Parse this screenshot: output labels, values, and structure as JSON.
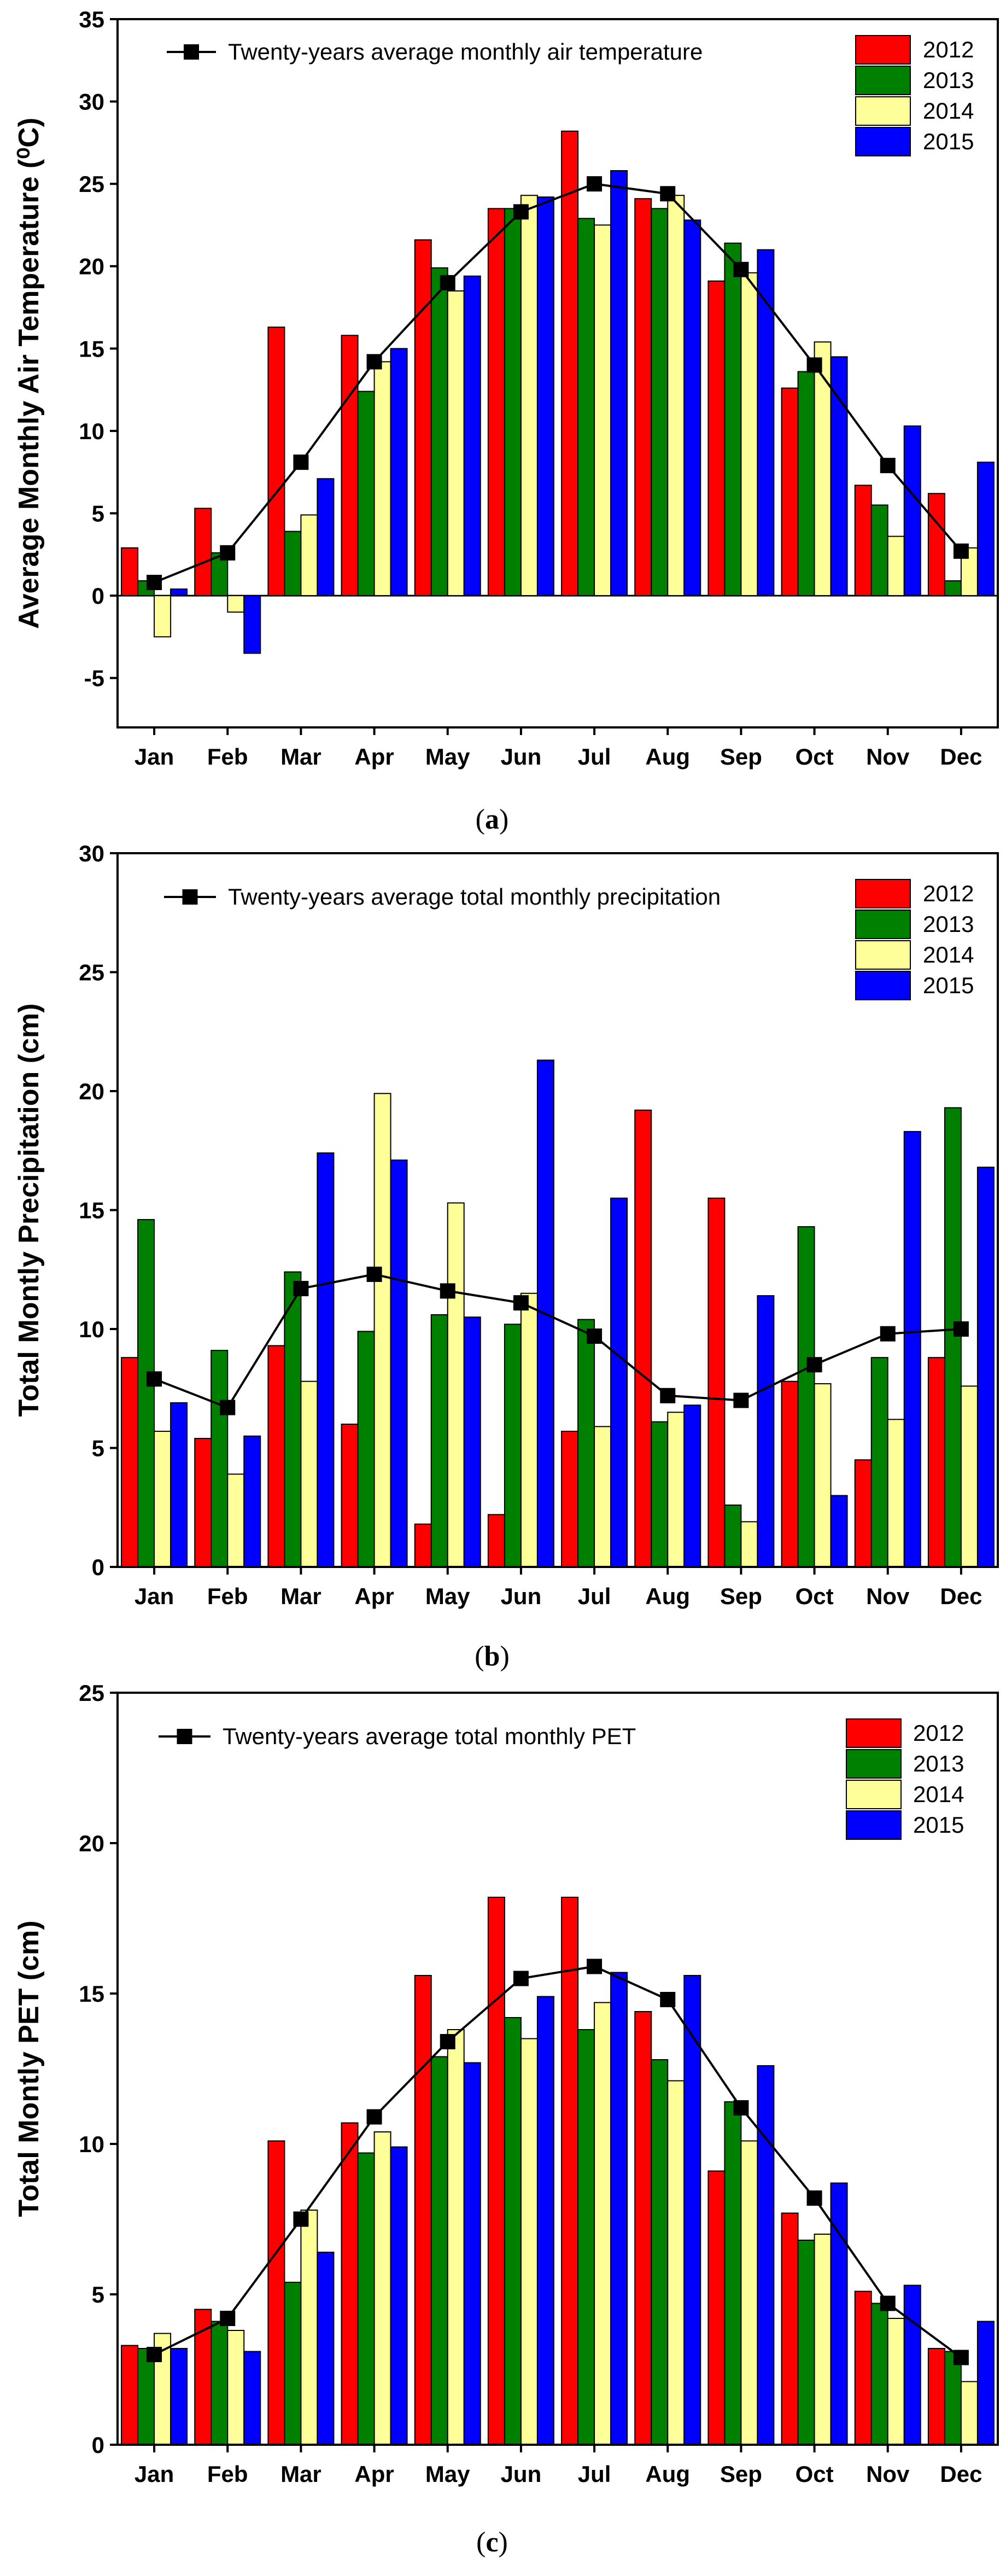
{
  "figure_colors": {
    "2012": "#ff0000",
    "2013": "#008000",
    "2014": "#ffff99",
    "2015": "#0000ff",
    "average_line": "#000000"
  },
  "chart_data": [
    {
      "type": "bar",
      "panel": "a",
      "caption": "(a)",
      "ylabel": "Average Monthly Air Temperature (⁰C)",
      "ylim": [
        -8,
        35
      ],
      "yticks": [
        -5,
        0,
        5,
        10,
        15,
        20,
        25,
        30,
        35
      ],
      "categories": [
        "Jan",
        "Feb",
        "Mar",
        "Apr",
        "May",
        "Jun",
        "Jul",
        "Aug",
        "Sep",
        "Oct",
        "Nov",
        "Dec"
      ],
      "series": [
        {
          "name": "2012",
          "values": [
            2.9,
            5.3,
            16.3,
            15.8,
            21.6,
            23.5,
            28.2,
            24.1,
            19.1,
            12.6,
            6.7,
            6.2
          ]
        },
        {
          "name": "2013",
          "values": [
            0.9,
            2.6,
            3.9,
            12.4,
            19.9,
            23.5,
            22.9,
            23.5,
            21.4,
            13.6,
            5.5,
            0.9
          ]
        },
        {
          "name": "2014",
          "values": [
            -2.5,
            -1.0,
            4.9,
            14.2,
            18.5,
            24.3,
            22.5,
            24.3,
            19.6,
            15.4,
            3.6,
            2.9
          ]
        },
        {
          "name": "2015",
          "values": [
            0.4,
            -3.5,
            7.1,
            15.0,
            19.4,
            24.2,
            25.8,
            22.8,
            21.0,
            14.5,
            10.3,
            8.1
          ]
        }
      ],
      "average": {
        "name": "Twenty-years average monthly air temperature",
        "values": [
          0.8,
          2.6,
          8.1,
          14.2,
          19.0,
          23.3,
          25.0,
          24.4,
          19.8,
          14.0,
          7.9,
          2.7
        ]
      }
    },
    {
      "type": "bar",
      "panel": "b",
      "caption": "(b)",
      "ylabel": "Total Montly Precipitation (cm)",
      "ylim": [
        0,
        30
      ],
      "yticks": [
        0,
        5,
        10,
        15,
        20,
        25,
        30
      ],
      "categories": [
        "Jan",
        "Feb",
        "Mar",
        "Apr",
        "May",
        "Jun",
        "Jul",
        "Aug",
        "Sep",
        "Oct",
        "Nov",
        "Dec"
      ],
      "series": [
        {
          "name": "2012",
          "values": [
            8.8,
            5.4,
            9.3,
            6.0,
            1.8,
            2.2,
            5.7,
            19.2,
            15.5,
            7.8,
            4.5,
            8.8
          ]
        },
        {
          "name": "2013",
          "values": [
            14.6,
            9.1,
            12.4,
            9.9,
            10.6,
            10.2,
            10.4,
            6.1,
            2.6,
            14.3,
            8.8,
            19.3
          ]
        },
        {
          "name": "2014",
          "values": [
            5.7,
            3.9,
            7.8,
            19.9,
            15.3,
            11.5,
            5.9,
            6.5,
            1.9,
            7.7,
            6.2,
            7.6
          ]
        },
        {
          "name": "2015",
          "values": [
            6.9,
            5.5,
            17.4,
            17.1,
            10.5,
            21.3,
            15.5,
            6.8,
            11.4,
            3.0,
            18.3,
            16.8
          ]
        }
      ],
      "average": {
        "name": "Twenty-years average total monthly precipitation",
        "values": [
          7.9,
          6.7,
          11.7,
          12.3,
          11.6,
          11.1,
          9.7,
          7.2,
          7.0,
          8.5,
          9.8,
          10.0
        ]
      }
    },
    {
      "type": "bar",
      "panel": "c",
      "caption": "(c)",
      "ylabel": "Total Montly PET (cm)",
      "ylim": [
        0,
        25
      ],
      "yticks": [
        0,
        5,
        10,
        15,
        20,
        25
      ],
      "categories": [
        "Jan",
        "Feb",
        "Mar",
        "Apr",
        "May",
        "Jun",
        "Jul",
        "Aug",
        "Sep",
        "Oct",
        "Nov",
        "Dec"
      ],
      "series": [
        {
          "name": "2012",
          "values": [
            3.3,
            4.5,
            10.1,
            10.7,
            15.6,
            18.2,
            18.2,
            14.4,
            9.1,
            7.7,
            5.1,
            3.2
          ]
        },
        {
          "name": "2013",
          "values": [
            3.2,
            4.1,
            5.4,
            9.7,
            12.9,
            14.2,
            13.8,
            12.8,
            11.4,
            6.8,
            4.7,
            3.1
          ]
        },
        {
          "name": "2014",
          "values": [
            3.7,
            3.8,
            7.8,
            10.4,
            13.8,
            13.5,
            14.7,
            12.1,
            10.1,
            7.0,
            4.2,
            2.1
          ]
        },
        {
          "name": "2015",
          "values": [
            3.2,
            3.1,
            6.4,
            9.9,
            12.7,
            14.9,
            15.7,
            15.6,
            12.6,
            8.7,
            5.3,
            4.1
          ]
        }
      ],
      "average": {
        "name": "Twenty-years average total monthly PET",
        "values": [
          3.0,
          4.2,
          7.5,
          10.9,
          13.4,
          15.5,
          15.9,
          14.8,
          11.2,
          8.2,
          4.7,
          2.9
        ]
      }
    }
  ]
}
